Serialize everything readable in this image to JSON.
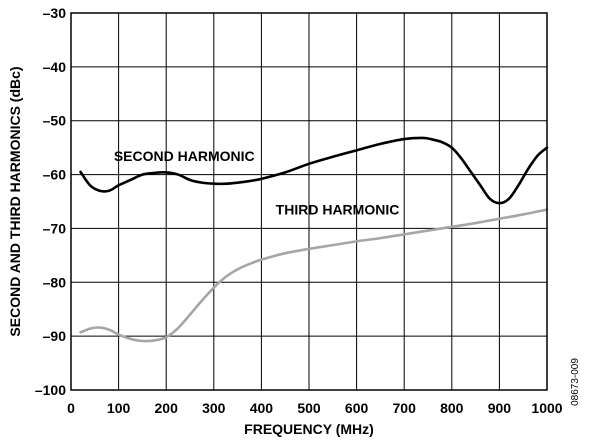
{
  "chart_data": {
    "type": "line",
    "xlabel": "FREQUENCY (MHz)",
    "ylabel": "SECOND AND THIRD HARMONICS (dBc)",
    "xlim": [
      0,
      1000
    ],
    "ylim": [
      -100,
      -30
    ],
    "xticks": [
      0,
      100,
      200,
      300,
      400,
      500,
      600,
      700,
      800,
      900,
      1000
    ],
    "yticks": [
      -100,
      -90,
      -80,
      -70,
      -60,
      -50,
      -40,
      -30
    ],
    "xtick_labels": [
      "0",
      "100",
      "200",
      "300",
      "400",
      "500",
      "600",
      "700",
      "800",
      "900",
      "1000"
    ],
    "ytick_labels": [
      "–100",
      "–90",
      "–80",
      "–70",
      "–60",
      "–50",
      "–40",
      "–30"
    ],
    "grid": true,
    "series": [
      {
        "name": "SECOND HARMONIC",
        "color": "#000000",
        "x": [
          20,
          40,
          60,
          80,
          100,
          125,
          150,
          175,
          200,
          225,
          250,
          275,
          300,
          325,
          350,
          375,
          400,
          450,
          500,
          550,
          600,
          650,
          700,
          740,
          760,
          780,
          800,
          820,
          840,
          860,
          880,
          900,
          920,
          940,
          960,
          980,
          1000
        ],
        "y": [
          -59.5,
          -62,
          -63,
          -63,
          -62,
          -61,
          -60,
          -59.7,
          -59.6,
          -60,
          -61,
          -61.5,
          -61.7,
          -61.7,
          -61.5,
          -61.2,
          -60.8,
          -59.6,
          -58,
          -56.7,
          -55.5,
          -54.3,
          -53.4,
          -53.2,
          -53.5,
          -54,
          -55,
          -57,
          -59.5,
          -62,
          -64.5,
          -65.3,
          -64.5,
          -62,
          -59,
          -56.5,
          -55
        ]
      },
      {
        "name": "THIRD HARMONIC",
        "color": "#a6a6a6",
        "x": [
          20,
          40,
          60,
          80,
          100,
          125,
          150,
          175,
          200,
          225,
          250,
          275,
          300,
          325,
          350,
          375,
          400,
          450,
          500,
          550,
          600,
          650,
          700,
          750,
          800,
          850,
          900,
          950,
          1000
        ],
        "y": [
          -89.3,
          -88.6,
          -88.4,
          -88.8,
          -89.7,
          -90.5,
          -90.9,
          -90.8,
          -90.2,
          -88.5,
          -86,
          -83.4,
          -81,
          -79,
          -77.6,
          -76.6,
          -75.8,
          -74.6,
          -73.8,
          -73.1,
          -72.4,
          -71.8,
          -71.1,
          -70.4,
          -69.7,
          -69,
          -68.2,
          -67.4,
          -66.5
        ]
      }
    ],
    "annotations": [
      {
        "text": "SECOND HARMONIC",
        "x": 90,
        "y": -57.5
      },
      {
        "text": "THIRD HARMONIC",
        "x": 430,
        "y": -67.4
      }
    ]
  },
  "figure_code": "08673-009"
}
